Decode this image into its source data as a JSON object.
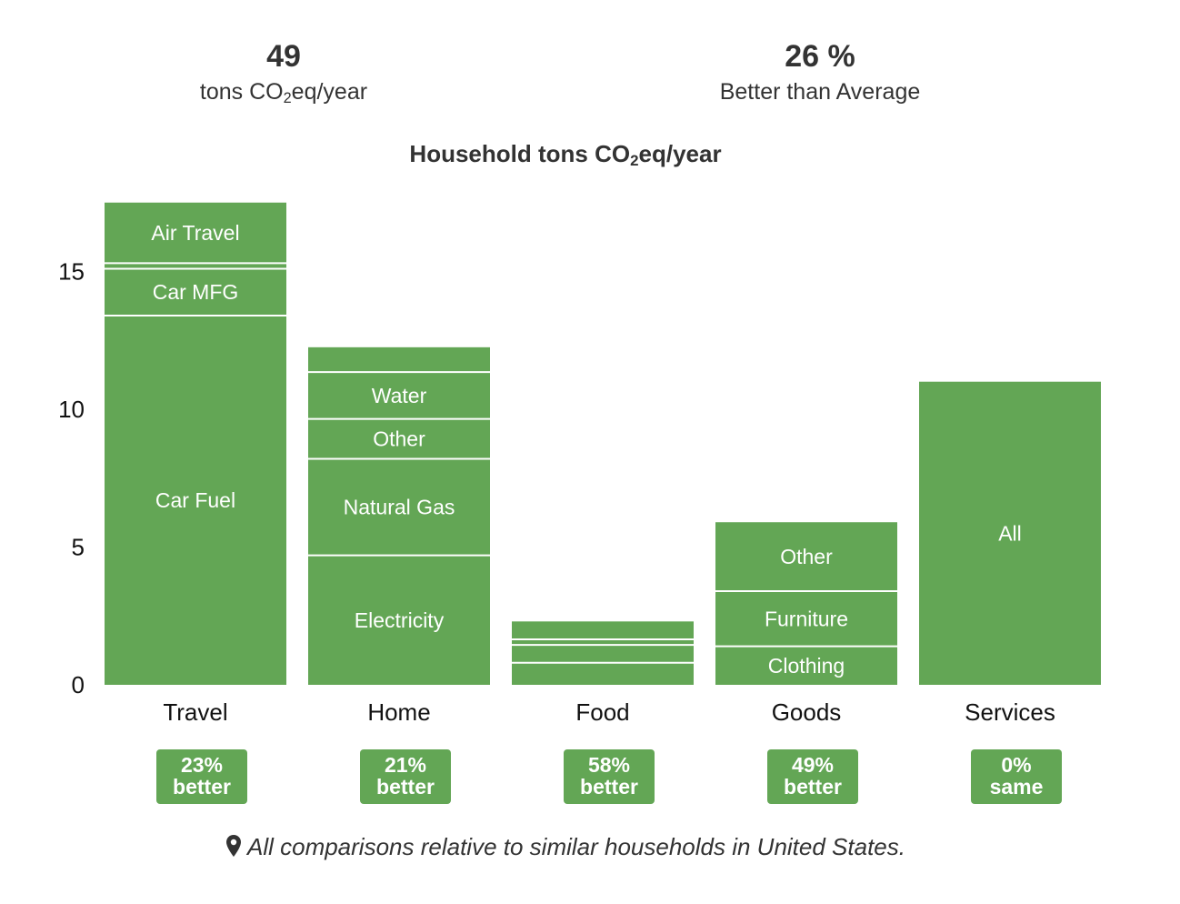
{
  "summary": {
    "total_value": "49",
    "total_label_pre": "tons CO",
    "total_label_sub": "2",
    "total_label_post": "eq/year",
    "better_value": "26 %",
    "better_label": "Better than Average"
  },
  "colors": {
    "bar": "#63a655",
    "divider": "#ffffff",
    "badge": "#63a655"
  },
  "chart_data": {
    "type": "bar",
    "stacked": true,
    "title_pre": "Household tons CO",
    "title_sub": "2",
    "title_post": "eq/year",
    "ylim": [
      0,
      17
    ],
    "yticks": [
      0,
      5,
      10,
      15
    ],
    "categories": [
      "Travel",
      "Home",
      "Food",
      "Goods",
      "Services"
    ],
    "stacks": [
      {
        "category": "Travel",
        "segments": [
          {
            "label": "Car Fuel",
            "value": 13.4
          },
          {
            "label": "Car MFG",
            "value": 1.7
          },
          {
            "label": "",
            "value": 0.2
          },
          {
            "label": "Air Travel",
            "value": 2.2
          }
        ]
      },
      {
        "category": "Home",
        "segments": [
          {
            "label": "Electricity",
            "value": 4.7
          },
          {
            "label": "Natural Gas",
            "value": 3.5
          },
          {
            "label": "Other",
            "value": 1.45
          },
          {
            "label": "Water",
            "value": 1.7
          },
          {
            "label": "",
            "value": 0.9
          }
        ]
      },
      {
        "category": "Food",
        "segments": [
          {
            "label": "",
            "value": 0.8
          },
          {
            "label": "",
            "value": 0.65
          },
          {
            "label": "",
            "value": 0.2
          },
          {
            "label": "",
            "value": 0.65
          }
        ]
      },
      {
        "category": "Goods",
        "segments": [
          {
            "label": "Clothing",
            "value": 1.4
          },
          {
            "label": "Furniture",
            "value": 2.0
          },
          {
            "label": "Other",
            "value": 2.5
          }
        ]
      },
      {
        "category": "Services",
        "segments": [
          {
            "label": "All",
            "value": 11.0
          }
        ]
      }
    ]
  },
  "badges": [
    {
      "line1": "23%",
      "line2": "better"
    },
    {
      "line1": "21%",
      "line2": "better"
    },
    {
      "line1": "58%",
      "line2": "better"
    },
    {
      "line1": "49%",
      "line2": "better"
    },
    {
      "line1": "0%",
      "line2": "same"
    }
  ],
  "footnote": {
    "icon": "map-pin-icon",
    "text": "All comparisons relative to similar households in United States."
  }
}
